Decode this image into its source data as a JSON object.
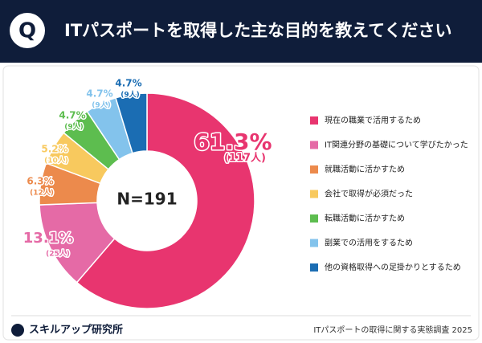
{
  "chart_data": {
    "type": "pie",
    "badge": "Q",
    "title": "ITパスポートを取得した主な目的を教えてください",
    "center_label": "N=191",
    "categories": [
      "現在の職業で活用するため",
      "IT関連分野の基礎について学びたかった",
      "就職活動に活かすため",
      "会社で取得が必須だった",
      "転職活動に活かすため",
      "副業での活用をするため",
      "他の資格取得への足掛かりとするため"
    ],
    "values": [
      61.3,
      13.1,
      6.3,
      5.2,
      4.7,
      4.7,
      4.7
    ],
    "value_labels": [
      "61.3%",
      "13.1%",
      "6.3%",
      "5.2%",
      "4.7%",
      "4.7%",
      "4.7%"
    ],
    "counts": [
      117,
      25,
      12,
      10,
      9,
      9,
      9
    ],
    "count_labels": [
      "(117人)",
      "(25人)",
      "(12人)",
      "(10人)",
      "(9人)",
      "(9人)",
      "(9人)"
    ],
    "colors": [
      "#e8356f",
      "#e56aa6",
      "#ec8a4c",
      "#f8c95e",
      "#5dbd4f",
      "#83c3ec",
      "#1b6db3"
    ],
    "brand": "スキルアップ研究所",
    "source": "ITパスポートの取得に関する実態調査 2025"
  }
}
